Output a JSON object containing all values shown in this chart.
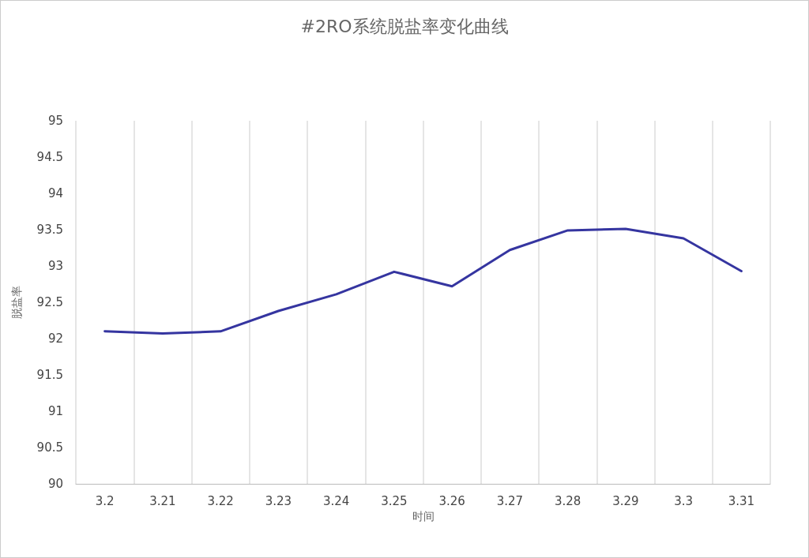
{
  "chart_data": {
    "type": "line",
    "title": "#2RO系统脱盐率变化曲线",
    "xlabel": "时间",
    "ylabel": "脱盐率",
    "categories": [
      "3.2",
      "3.21",
      "3.22",
      "3.23",
      "3.24",
      "3.25",
      "3.26",
      "3.27",
      "3.28",
      "3.29",
      "3.3",
      "3.31"
    ],
    "series": [
      {
        "color": "#3535a0",
        "values": [
          92.1,
          92.07,
          92.1,
          92.38,
          92.61,
          92.92,
          92.72,
          93.22,
          93.49,
          93.51,
          93.38,
          92.93
        ]
      }
    ],
    "ylim": [
      90,
      95
    ],
    "yticks": [
      90,
      90.5,
      91,
      91.5,
      92,
      92.5,
      93,
      93.5,
      94,
      94.5,
      95
    ],
    "grid": "x",
    "marker": "none",
    "line_style": "solid"
  }
}
